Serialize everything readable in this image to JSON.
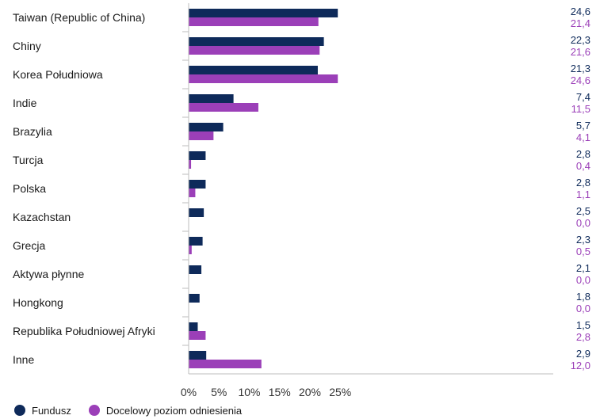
{
  "chart_data": {
    "type": "bar",
    "orientation": "horizontal",
    "categories": [
      "Taiwan (Republic of China)",
      "Chiny",
      "Korea Południowa",
      "Indie",
      "Brazylia",
      "Turcja",
      "Polska",
      "Kazachstan",
      "Grecja",
      "Aktywa płynne",
      "Hongkong",
      "Republika Południowej Afryki",
      "Inne"
    ],
    "series": [
      {
        "name": "Fundusz",
        "color": "#0e2a5a",
        "values": [
          24.6,
          22.3,
          21.3,
          7.4,
          5.7,
          2.8,
          2.8,
          2.5,
          2.3,
          2.1,
          1.8,
          1.5,
          2.9
        ],
        "labels": [
          "24,6",
          "22,3",
          "21,3",
          "7,4",
          "5,7",
          "2,8",
          "2,8",
          "2,5",
          "2,3",
          "2,1",
          "1,8",
          "1,5",
          "2,9"
        ]
      },
      {
        "name": "Docelowy poziom odniesienia",
        "color": "#9b3fb8",
        "values": [
          21.4,
          21.6,
          24.6,
          11.5,
          4.1,
          0.4,
          1.1,
          0.0,
          0.5,
          0.0,
          0.0,
          2.8,
          12.0
        ],
        "labels": [
          "21,4",
          "21,6",
          "24,6",
          "11,5",
          "4,1",
          "0,4",
          "1,1",
          "0,0",
          "0,5",
          "0,0",
          "0,0",
          "2,8",
          "12,0"
        ]
      }
    ],
    "xlim": [
      0,
      30
    ],
    "xticks": [
      0,
      5,
      10,
      15,
      20,
      25
    ],
    "xtick_labels": [
      "0%",
      "5%",
      "10%",
      "15%",
      "20%",
      "25%"
    ],
    "legend_position": "bottom-left",
    "grid": false
  }
}
